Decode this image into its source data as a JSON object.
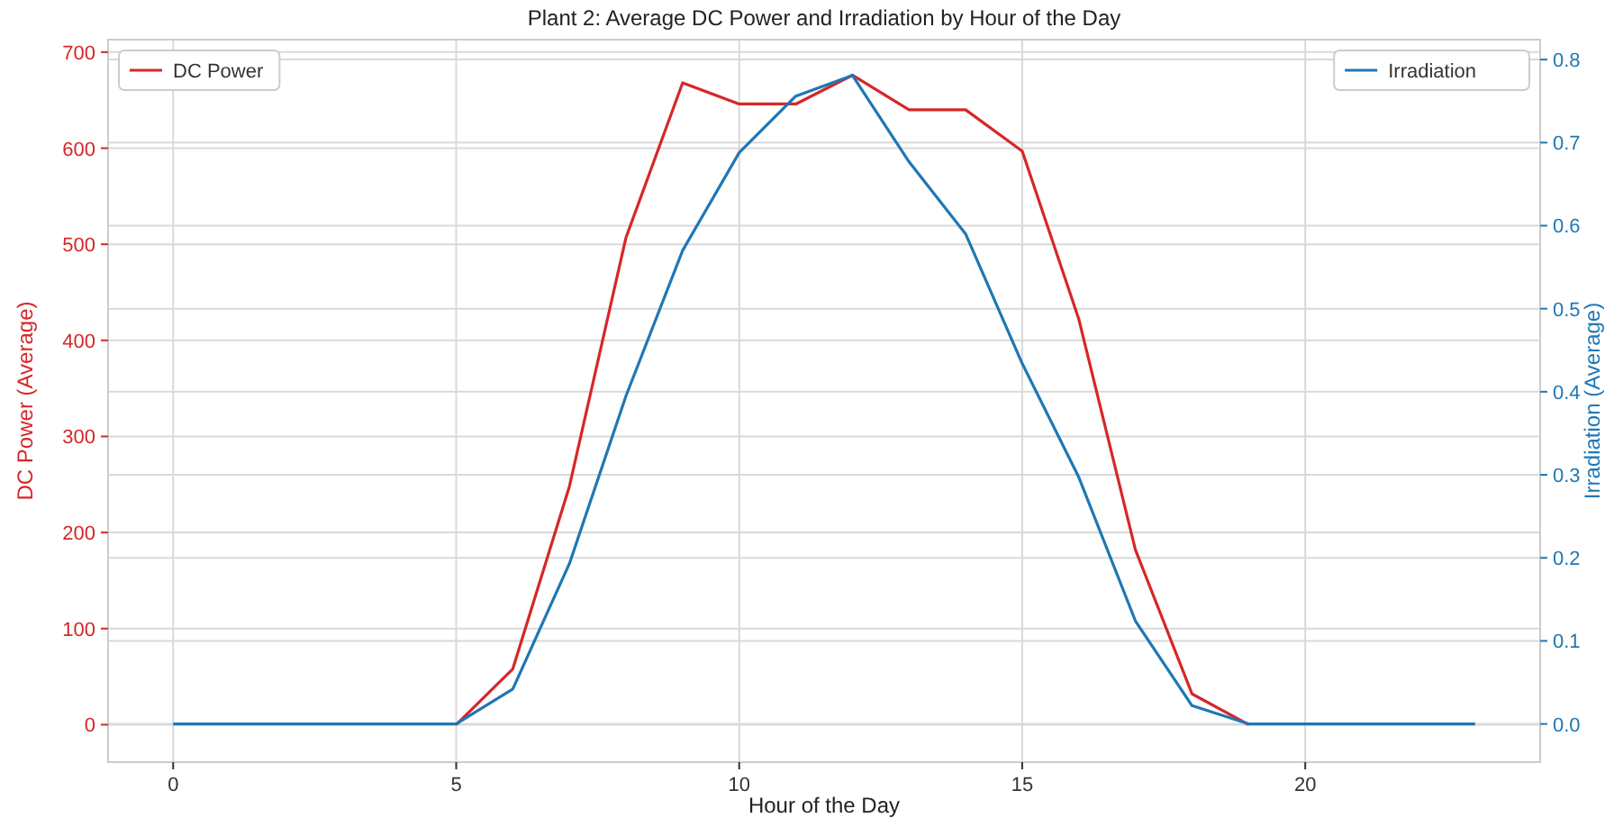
{
  "chart_data": {
    "type": "line",
    "title": "Plant 2: Average DC Power and Irradiation by Hour of the Day",
    "xlabel": "Hour of the Day",
    "ylabel": "DC Power (Average)",
    "y2label": "Irradiation (Average)",
    "x": [
      0,
      1,
      2,
      3,
      4,
      5,
      6,
      7,
      8,
      9,
      10,
      11,
      12,
      13,
      14,
      15,
      16,
      17,
      18,
      19,
      20,
      21,
      22,
      23
    ],
    "series": [
      {
        "name": "DC Power",
        "color": "#d62728",
        "values": [
          null,
          null,
          null,
          null,
          null,
          0,
          58,
          248,
          507,
          668,
          646,
          646,
          676,
          640,
          640,
          597,
          422,
          182,
          32,
          0,
          null,
          null,
          null,
          null
        ]
      },
      {
        "name": "Irradiation",
        "color": "#1f77b4",
        "axis": "y2",
        "values": [
          0,
          0,
          0,
          0,
          0,
          0,
          0.042,
          0.193,
          0.395,
          0.57,
          0.688,
          0.756,
          0.781,
          0.677,
          0.59,
          0.434,
          0.297,
          0.124,
          0.022,
          0,
          0,
          0,
          0,
          0
        ]
      }
    ],
    "xlim": [
      -1.15,
      24.15
    ],
    "xticks": [
      0,
      5,
      10,
      15,
      20
    ],
    "ylim": [
      -39,
      713
    ],
    "yticks": [
      0,
      100,
      200,
      300,
      400,
      500,
      600,
      700
    ],
    "y2lim": [
      -0.046,
      0.824
    ],
    "y2ticks": [
      {
        "value": 0,
        "label": "0.0"
      },
      {
        "value": 0.1,
        "label": "0.1"
      },
      {
        "value": 0.2,
        "label": "0.2"
      },
      {
        "value": 0.3,
        "label": "0.3"
      },
      {
        "value": 0.4,
        "label": "0.4"
      },
      {
        "value": 0.5,
        "label": "0.5"
      },
      {
        "value": 0.6,
        "label": "0.6"
      },
      {
        "value": 0.7,
        "label": "0.7"
      },
      {
        "value": 0.8,
        "label": "0.8"
      }
    ],
    "grid": true,
    "legend": "top",
    "marker": "none",
    "line_style": "solid"
  }
}
